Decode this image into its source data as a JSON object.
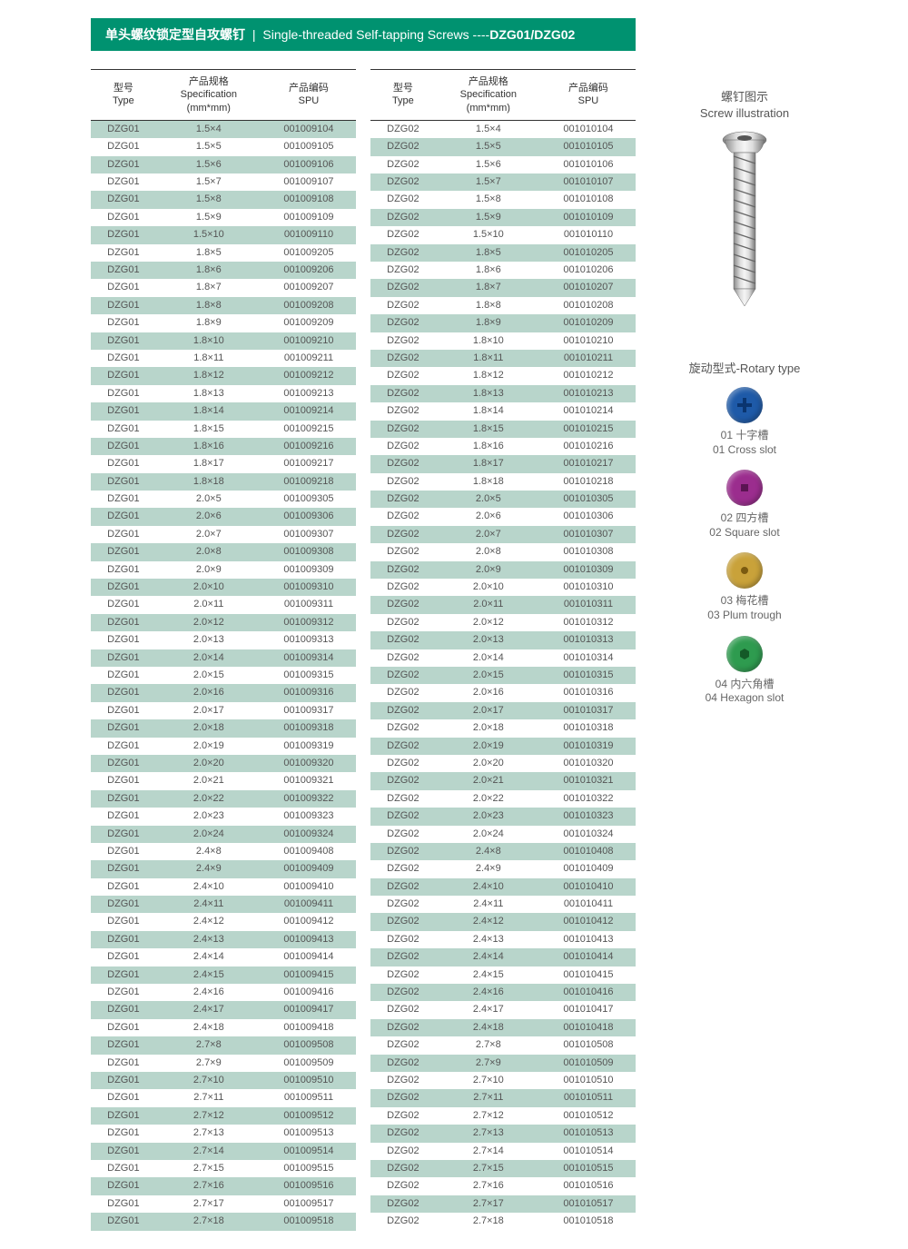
{
  "header": {
    "zh": "单头螺纹锁定型自攻螺钉",
    "sep": "|",
    "en": "Single-threaded Self-tapping Screws ----",
    "code": "DZG01/DZG02"
  },
  "columns": {
    "type_zh": "型号",
    "type_en": "Type",
    "spec_zh": "产品规格",
    "spec_en": "Specification",
    "spec_unit": "(mm*mm)",
    "spu_zh": "产品编码",
    "spu_en": "SPU"
  },
  "colors": {
    "header_bg": "#009270",
    "row_shade": "#b8d5cb",
    "text": "#555"
  },
  "sidebar": {
    "illus_zh": "螺钉图示",
    "illus_en": "Screw illustration",
    "rotary_title": "旋动型式-Rotary type",
    "types": [
      {
        "num": "01",
        "zh": "十字槽",
        "en": "Cross slot",
        "color": "#1e5aa8",
        "icon": "cross"
      },
      {
        "num": "02",
        "zh": "四方槽",
        "en": "Square slot",
        "color": "#9b2d8e",
        "icon": "square"
      },
      {
        "num": "03",
        "zh": "梅花槽",
        "en": "Plum trough",
        "color": "#c9a23a",
        "icon": "plum"
      },
      {
        "num": "04",
        "zh": "内六角槽",
        "en": "Hexagon slot",
        "color": "#2e9b4f",
        "icon": "hex"
      }
    ]
  },
  "specs": [
    "1.5×4",
    "1.5×5",
    "1.5×6",
    "1.5×7",
    "1.5×8",
    "1.5×9",
    "1.5×10",
    "1.8×5",
    "1.8×6",
    "1.8×7",
    "1.8×8",
    "1.8×9",
    "1.8×10",
    "1.8×11",
    "1.8×12",
    "1.8×13",
    "1.8×14",
    "1.8×15",
    "1.8×16",
    "1.8×17",
    "1.8×18",
    "2.0×5",
    "2.0×6",
    "2.0×7",
    "2.0×8",
    "2.0×9",
    "2.0×10",
    "2.0×11",
    "2.0×12",
    "2.0×13",
    "2.0×14",
    "2.0×15",
    "2.0×16",
    "2.0×17",
    "2.0×18",
    "2.0×19",
    "2.0×20",
    "2.0×21",
    "2.0×22",
    "2.0×23",
    "2.0×24",
    "2.4×8",
    "2.4×9",
    "2.4×10",
    "2.4×11",
    "2.4×12",
    "2.4×13",
    "2.4×14",
    "2.4×15",
    "2.4×16",
    "2.4×17",
    "2.4×18",
    "2.7×8",
    "2.7×9",
    "2.7×10",
    "2.7×11",
    "2.7×12",
    "2.7×13",
    "2.7×14",
    "2.7×15",
    "2.7×16",
    "2.7×17",
    "2.7×18"
  ],
  "spu1": [
    "001009104",
    "001009105",
    "001009106",
    "001009107",
    "001009108",
    "001009109",
    "001009110",
    "001009205",
    "001009206",
    "001009207",
    "001009208",
    "001009209",
    "001009210",
    "001009211",
    "001009212",
    "001009213",
    "001009214",
    "001009215",
    "001009216",
    "001009217",
    "001009218",
    "001009305",
    "001009306",
    "001009307",
    "001009308",
    "001009309",
    "001009310",
    "001009311",
    "001009312",
    "001009313",
    "001009314",
    "001009315",
    "001009316",
    "001009317",
    "001009318",
    "001009319",
    "001009320",
    "001009321",
    "001009322",
    "001009323",
    "001009324",
    "001009408",
    "001009409",
    "001009410",
    "001009411",
    "001009412",
    "001009413",
    "001009414",
    "001009415",
    "001009416",
    "001009417",
    "001009418",
    "001009508",
    "001009509",
    "001009510",
    "001009511",
    "001009512",
    "001009513",
    "001009514",
    "001009515",
    "001009516",
    "001009517",
    "001009518"
  ],
  "spu2": [
    "001010104",
    "001010105",
    "001010106",
    "001010107",
    "001010108",
    "001010109",
    "001010110",
    "001010205",
    "001010206",
    "001010207",
    "001010208",
    "001010209",
    "001010210",
    "001010211",
    "001010212",
    "001010213",
    "001010214",
    "001010215",
    "001010216",
    "001010217",
    "001010218",
    "001010305",
    "001010306",
    "001010307",
    "001010308",
    "001010309",
    "001010310",
    "001010311",
    "001010312",
    "001010313",
    "001010314",
    "001010315",
    "001010316",
    "001010317",
    "001010318",
    "001010319",
    "001010320",
    "001010321",
    "001010322",
    "001010323",
    "001010324",
    "001010408",
    "001010409",
    "001010410",
    "001010411",
    "001010412",
    "001010413",
    "001010414",
    "001010415",
    "001010416",
    "001010417",
    "001010418",
    "001010508",
    "001010509",
    "001010510",
    "001010511",
    "001010512",
    "001010513",
    "001010514",
    "001010515",
    "001010516",
    "001010517",
    "001010518"
  ],
  "shade_pattern_1": [
    1,
    0,
    1,
    0,
    1,
    0,
    1,
    0,
    1,
    0,
    1,
    0,
    1,
    0,
    1,
    0,
    1,
    0,
    1,
    0,
    1,
    0,
    1,
    0,
    1,
    0,
    1,
    0,
    1,
    0,
    1,
    0,
    1,
    0,
    1,
    0,
    1,
    0,
    1,
    0,
    1,
    0,
    1,
    0,
    1,
    0,
    1,
    0,
    1,
    0,
    1,
    0,
    1,
    0,
    1,
    0,
    1,
    0,
    1,
    0,
    1,
    0,
    1
  ],
  "shade_pattern_2": [
    0,
    1,
    0,
    1,
    0,
    1,
    0,
    1,
    0,
    1,
    0,
    1,
    0,
    1,
    0,
    1,
    0,
    1,
    0,
    1,
    0,
    1,
    0,
    1,
    0,
    1,
    0,
    1,
    0,
    1,
    0,
    1,
    0,
    1,
    0,
    1,
    0,
    1,
    0,
    1,
    0,
    1,
    0,
    1,
    0,
    1,
    0,
    1,
    0,
    1,
    0,
    1,
    0,
    1,
    0,
    1,
    0,
    1,
    0,
    1,
    0,
    1,
    0
  ]
}
